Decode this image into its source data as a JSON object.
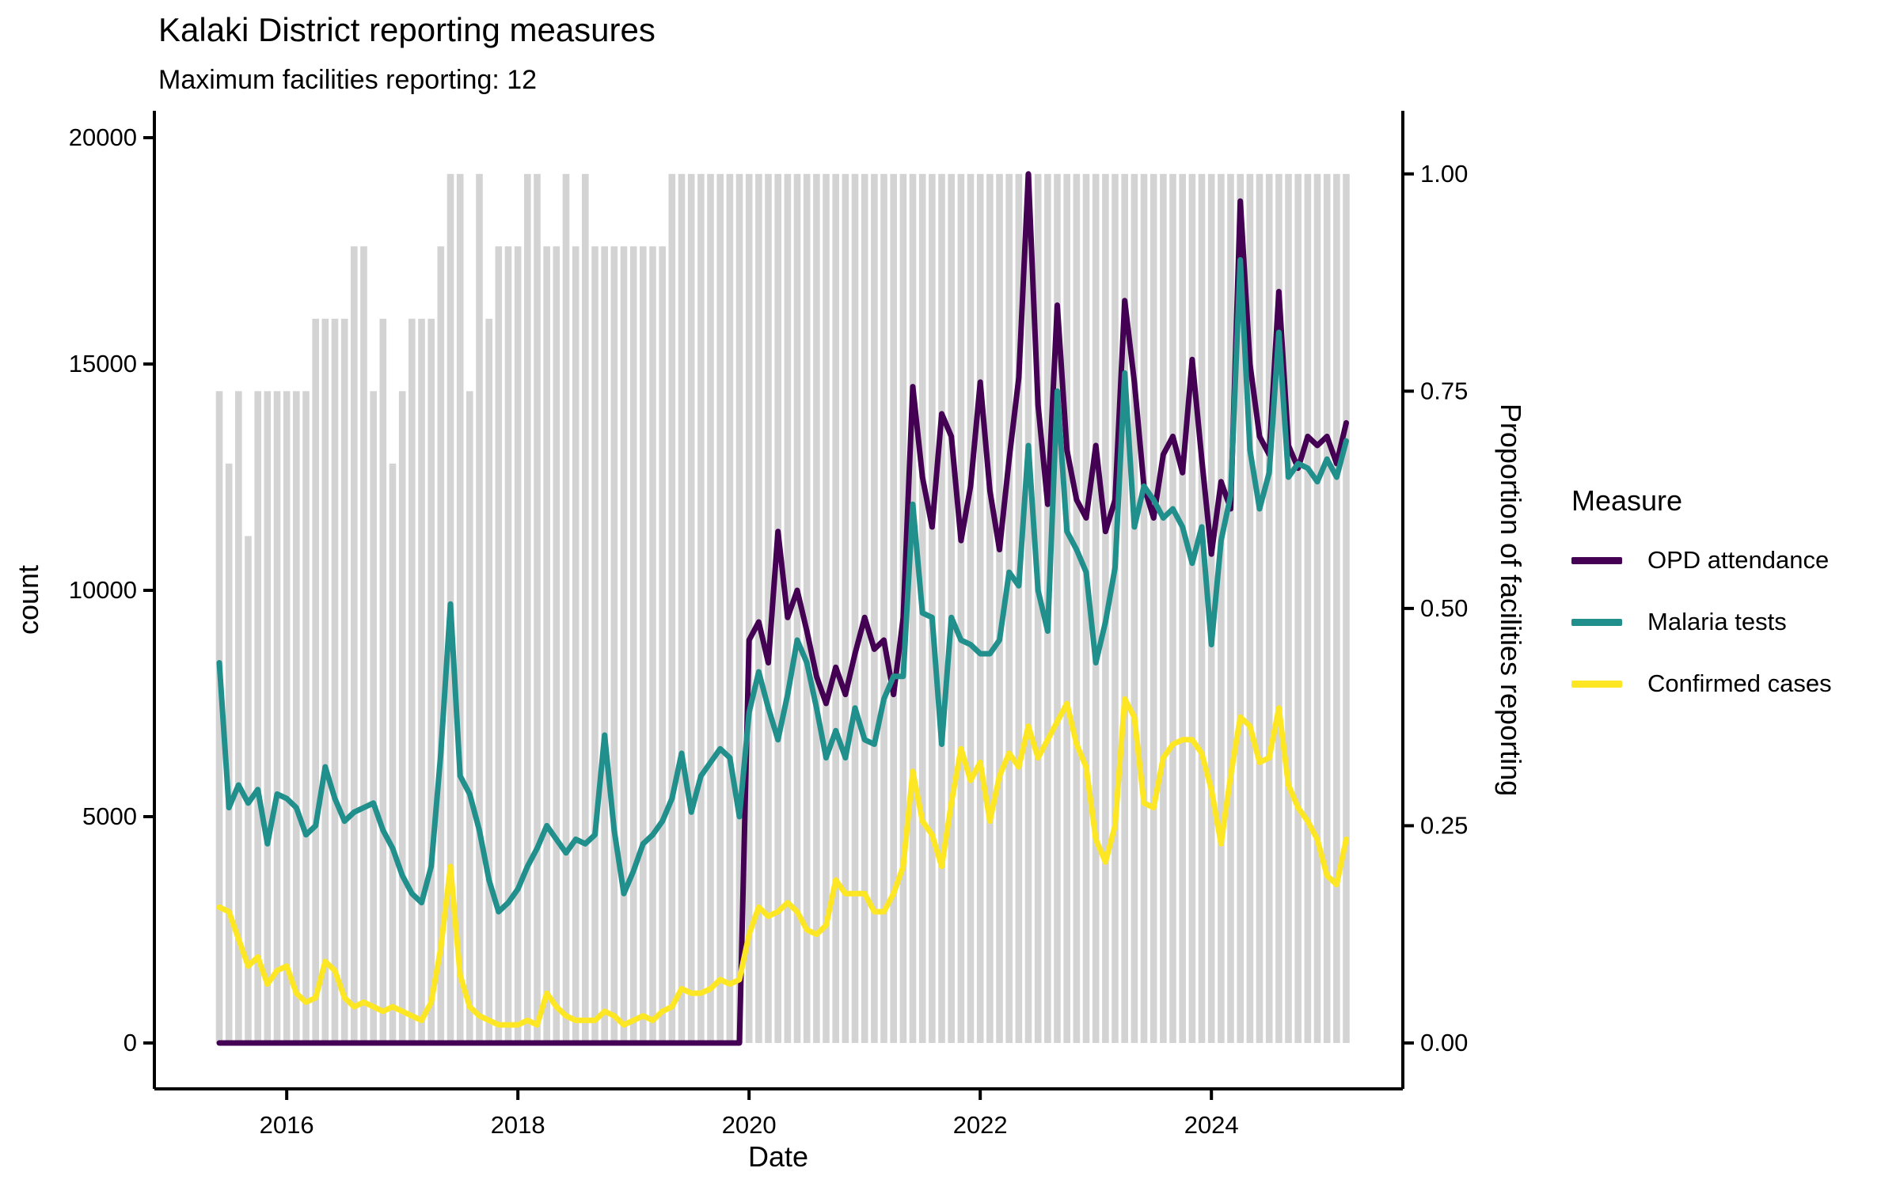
{
  "title": "Kalaki District reporting measures",
  "subtitle": "Maximum facilities reporting: 12",
  "axes": {
    "x": {
      "label": "Date",
      "tick_labels": [
        "2016",
        "2018",
        "2020",
        "2022",
        "2024"
      ],
      "tick_years": [
        2016,
        2018,
        2020,
        2022,
        2024
      ]
    },
    "y_left": {
      "label": "count",
      "tick_labels": [
        "0",
        "5000",
        "10000",
        "15000",
        "20000"
      ],
      "tick_values": [
        0,
        5000,
        10000,
        15000,
        20000
      ],
      "range": [
        0,
        20000
      ]
    },
    "y_right": {
      "label": "Proportion of facilities reporting",
      "tick_labels": [
        "0.00",
        "0.25",
        "0.50",
        "0.75",
        "1.00"
      ],
      "tick_values": [
        0,
        0.25,
        0.5,
        0.75,
        1.0
      ],
      "range": [
        0,
        1
      ]
    }
  },
  "legend": {
    "title": "Measure",
    "items": [
      {
        "label": "OPD attendance",
        "color": "#440154"
      },
      {
        "label": "Malaria tests",
        "color": "#21908c"
      },
      {
        "label": "Confirmed cases",
        "color": "#fde725"
      }
    ]
  },
  "colors": {
    "bar": "#d3d3d3",
    "axis": "#000000",
    "opd": "#440154",
    "malaria": "#21908c",
    "confirmed": "#fde725"
  },
  "chart_data": {
    "type": "line",
    "title": "Kalaki District reporting measures",
    "subtitle": "Maximum facilities reporting: 12",
    "xlabel": "Date",
    "ylabel_left": "count",
    "ylabel_right": "Proportion of facilities reporting",
    "ylim_left": [
      0,
      20000
    ],
    "ylim_right": [
      0,
      1
    ],
    "grid": false,
    "legend_position": "right",
    "max_facilities": 12,
    "proportion_one_equals_count": 19200,
    "x": [
      "2015-06",
      "2015-07",
      "2015-08",
      "2015-09",
      "2015-10",
      "2015-11",
      "2015-12",
      "2016-01",
      "2016-02",
      "2016-03",
      "2016-04",
      "2016-05",
      "2016-06",
      "2016-07",
      "2016-08",
      "2016-09",
      "2016-10",
      "2016-11",
      "2016-12",
      "2017-01",
      "2017-02",
      "2017-03",
      "2017-04",
      "2017-05",
      "2017-06",
      "2017-07",
      "2017-08",
      "2017-09",
      "2017-10",
      "2017-11",
      "2017-12",
      "2018-01",
      "2018-02",
      "2018-03",
      "2018-04",
      "2018-05",
      "2018-06",
      "2018-07",
      "2018-08",
      "2018-09",
      "2018-10",
      "2018-11",
      "2018-12",
      "2019-01",
      "2019-02",
      "2019-03",
      "2019-04",
      "2019-05",
      "2019-06",
      "2019-07",
      "2019-08",
      "2019-09",
      "2019-10",
      "2019-11",
      "2019-12",
      "2020-01",
      "2020-02",
      "2020-03",
      "2020-04",
      "2020-05",
      "2020-06",
      "2020-07",
      "2020-08",
      "2020-09",
      "2020-10",
      "2020-11",
      "2020-12",
      "2021-01",
      "2021-02",
      "2021-03",
      "2021-04",
      "2021-05",
      "2021-06",
      "2021-07",
      "2021-08",
      "2021-09",
      "2021-10",
      "2021-11",
      "2021-12",
      "2022-01",
      "2022-02",
      "2022-03",
      "2022-04",
      "2022-05",
      "2022-06",
      "2022-07",
      "2022-08",
      "2022-09",
      "2022-10",
      "2022-11",
      "2022-12",
      "2023-01",
      "2023-02",
      "2023-03",
      "2023-04",
      "2023-05",
      "2023-06",
      "2023-07",
      "2023-08",
      "2023-09",
      "2023-10",
      "2023-11",
      "2023-12",
      "2024-01",
      "2024-02",
      "2024-03",
      "2024-04",
      "2024-05",
      "2024-06",
      "2024-07",
      "2024-08",
      "2024-09",
      "2024-10",
      "2024-11",
      "2024-12",
      "2025-01",
      "2025-02",
      "2025-03"
    ],
    "bars": {
      "name": "Facilities reporting (out of 12)",
      "axis": "right",
      "values": [
        9,
        8,
        9,
        7,
        9,
        9,
        9,
        9,
        9,
        9,
        10,
        10,
        10,
        10,
        11,
        11,
        9,
        10,
        8,
        9,
        10,
        10,
        10,
        11,
        12,
        12,
        9,
        12,
        10,
        11,
        11,
        11,
        12,
        12,
        11,
        11,
        12,
        11,
        12,
        11,
        11,
        11,
        11,
        11,
        11,
        11,
        11,
        12,
        12,
        12,
        12,
        12,
        12,
        12,
        12,
        12,
        12,
        12,
        12,
        12,
        12,
        12,
        12,
        12,
        12,
        12,
        12,
        12,
        12,
        12,
        12,
        12,
        12,
        12,
        12,
        12,
        12,
        12,
        12,
        12,
        12,
        12,
        12,
        12,
        12,
        12,
        12,
        12,
        12,
        12,
        12,
        12,
        12,
        12,
        12,
        12,
        12,
        12,
        12,
        12,
        12,
        12,
        12,
        12,
        12,
        12,
        12,
        12,
        12,
        12,
        12,
        12,
        12,
        12,
        12,
        12,
        12,
        12
      ]
    },
    "series": [
      {
        "name": "OPD attendance",
        "color": "#440154",
        "axis": "left",
        "values": [
          0,
          0,
          0,
          0,
          0,
          0,
          0,
          0,
          0,
          0,
          0,
          0,
          0,
          0,
          0,
          0,
          0,
          0,
          0,
          0,
          0,
          0,
          0,
          0,
          0,
          0,
          0,
          0,
          0,
          0,
          0,
          0,
          0,
          0,
          0,
          0,
          0,
          0,
          0,
          0,
          0,
          0,
          0,
          0,
          0,
          0,
          0,
          0,
          0,
          0,
          0,
          0,
          0,
          0,
          0,
          8900,
          9300,
          8400,
          11300,
          9400,
          10000,
          9100,
          8100,
          7500,
          8300,
          7700,
          8600,
          9400,
          8700,
          8900,
          7700,
          9400,
          14500,
          12500,
          11400,
          13900,
          13400,
          11100,
          12300,
          14600,
          12200,
          10900,
          12900,
          14700,
          19200,
          14100,
          11900,
          16300,
          13100,
          12000,
          11600,
          13200,
          11300,
          12000,
          16400,
          14600,
          12300,
          11600,
          13000,
          13400,
          12600,
          15100,
          12900,
          10800,
          12400,
          11800,
          18600,
          15000,
          13400,
          13000,
          16600,
          13200,
          12700,
          13400,
          13200,
          13400,
          12800,
          13700
        ]
      },
      {
        "name": "Malaria tests",
        "color": "#21908c",
        "axis": "left",
        "values": [
          8400,
          5200,
          5700,
          5300,
          5600,
          4400,
          5500,
          5400,
          5200,
          4600,
          4800,
          6100,
          5400,
          4900,
          5100,
          5200,
          5300,
          4700,
          4300,
          3700,
          3300,
          3100,
          3900,
          6400,
          9700,
          5900,
          5500,
          4700,
          3600,
          2900,
          3100,
          3400,
          3900,
          4300,
          4800,
          4500,
          4200,
          4500,
          4400,
          4600,
          6800,
          4700,
          3300,
          3800,
          4400,
          4600,
          4900,
          5400,
          6400,
          5100,
          5900,
          6200,
          6500,
          6300,
          5000,
          7300,
          8200,
          7400,
          6700,
          7700,
          8900,
          8400,
          7400,
          6300,
          6900,
          6300,
          7400,
          6700,
          6600,
          7600,
          8100,
          8100,
          11900,
          9500,
          9400,
          6600,
          9400,
          8900,
          8800,
          8600,
          8600,
          8900,
          10400,
          10100,
          13200,
          10000,
          9100,
          14400,
          11300,
          10900,
          10400,
          8400,
          9300,
          10500,
          14800,
          11400,
          12300,
          12000,
          11600,
          11800,
          11400,
          10600,
          11400,
          8800,
          11100,
          12100,
          17300,
          13100,
          11800,
          12600,
          15700,
          12500,
          12800,
          12700,
          12400,
          12900,
          12500,
          13300
        ]
      },
      {
        "name": "Confirmed cases",
        "color": "#fde725",
        "axis": "left",
        "values": [
          3000,
          2900,
          2300,
          1700,
          1900,
          1300,
          1600,
          1700,
          1100,
          900,
          1000,
          1800,
          1600,
          1000,
          800,
          900,
          800,
          700,
          800,
          700,
          600,
          500,
          900,
          2100,
          3900,
          1500,
          800,
          600,
          500,
          400,
          400,
          400,
          500,
          400,
          1100,
          800,
          600,
          500,
          500,
          500,
          700,
          600,
          400,
          500,
          600,
          500,
          700,
          800,
          1200,
          1100,
          1100,
          1200,
          1400,
          1300,
          1400,
          2400,
          3000,
          2800,
          2900,
          3100,
          2900,
          2500,
          2400,
          2600,
          3600,
          3300,
          3300,
          3300,
          2900,
          2900,
          3300,
          3900,
          6000,
          4900,
          4600,
          3900,
          5300,
          6500,
          5800,
          6200,
          4900,
          5900,
          6400,
          6100,
          7000,
          6300,
          6700,
          7100,
          7500,
          6600,
          6100,
          4500,
          4000,
          4800,
          7600,
          7200,
          5300,
          5200,
          6300,
          6600,
          6700,
          6700,
          6400,
          5600,
          4400,
          5900,
          7200,
          7000,
          6200,
          6300,
          7400,
          5700,
          5200,
          4900,
          4500,
          3700,
          3500,
          4500
        ]
      }
    ]
  }
}
